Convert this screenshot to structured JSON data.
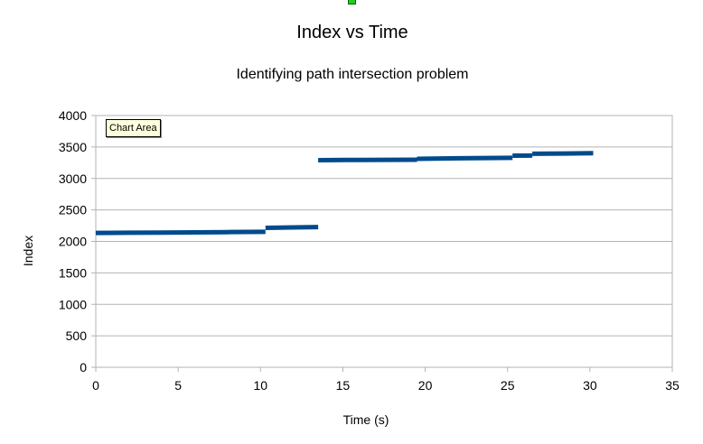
{
  "chart_data": {
    "type": "line",
    "title": "Index vs Time",
    "subtitle": "Identifying path intersection problem",
    "xlabel": "Time (s)",
    "ylabel": "Index",
    "xlim": [
      0,
      35
    ],
    "ylim": [
      0,
      4000
    ],
    "xticks": [
      0,
      5,
      10,
      15,
      20,
      25,
      30,
      35
    ],
    "yticks": [
      0,
      500,
      1000,
      1500,
      2000,
      2500,
      3000,
      3500,
      4000
    ],
    "grid": true,
    "legend": "none",
    "series_color": "#004b8d",
    "series": [
      {
        "name": "Index",
        "segments": [
          [
            [
              0.0,
              2135
            ],
            [
              2.0,
              2138
            ],
            [
              4.0,
              2141
            ],
            [
              6.0,
              2144
            ],
            [
              8.0,
              2148
            ],
            [
              10.3,
              2152
            ]
          ],
          [
            [
              10.3,
              2215
            ],
            [
              12.0,
              2222
            ],
            [
              13.5,
              2228
            ]
          ],
          [
            [
              13.5,
              3290
            ],
            [
              16.0,
              3294
            ],
            [
              19.5,
              3298
            ]
          ],
          [
            [
              19.5,
              3312
            ],
            [
              22.0,
              3320
            ],
            [
              25.3,
              3328
            ]
          ],
          [
            [
              25.3,
              3362
            ],
            [
              26.5,
              3364
            ]
          ],
          [
            [
              26.5,
              3392
            ],
            [
              28.5,
              3396
            ],
            [
              30.2,
              3400
            ]
          ]
        ]
      }
    ]
  },
  "tooltip": {
    "label": "Chart Area"
  }
}
